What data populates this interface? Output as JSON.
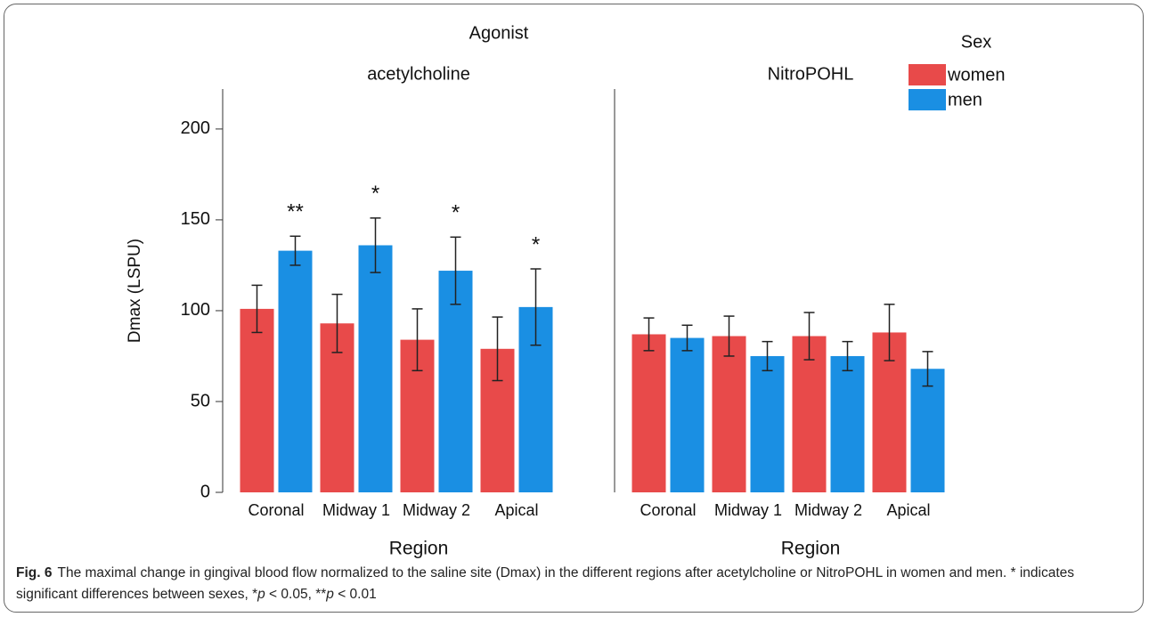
{
  "title": "Agonist",
  "legend": {
    "title": "Sex"
  },
  "caption": {
    "label": "Fig. 6",
    "parts": [
      "The maximal change in gingival blood flow normalized to the saline site (Dmax) in the different regions after acetylcholine or NitroPOHL in women and men. * indicates significant differences between sexes, *",
      "p",
      " < 0.05, **",
      "p",
      " < 0.01"
    ]
  },
  "chart_data": [
    {
      "type": "bar",
      "title": "acetylcholine",
      "x_label": "Region",
      "y_label": "Dmax (LSPU)",
      "categories": [
        "Coronal",
        "Midway 1",
        "Midway 2",
        "Apical"
      ],
      "series": [
        {
          "name": "women",
          "color": "#e84a4a",
          "values": [
            101,
            93,
            84,
            79
          ],
          "errors": [
            13,
            16,
            17,
            17.5
          ]
        },
        {
          "name": "men",
          "color": "#1a8fe3",
          "values": [
            133,
            136,
            122,
            102
          ],
          "errors": [
            8,
            15,
            18.5,
            21
          ],
          "annotations": [
            "**",
            "*",
            "*",
            "*"
          ]
        }
      ],
      "ylim": [
        0,
        222
      ],
      "yticks": [
        0,
        50,
        100,
        150,
        200
      ]
    },
    {
      "type": "bar",
      "title": "NitroPOHL",
      "x_label": "Region",
      "categories": [
        "Coronal",
        "Midway 1",
        "Midway 2",
        "Apical"
      ],
      "series": [
        {
          "name": "women",
          "color": "#e84a4a",
          "values": [
            87,
            86,
            86,
            88
          ],
          "errors": [
            9,
            11,
            13,
            15.5
          ]
        },
        {
          "name": "men",
          "color": "#1a8fe3",
          "values": [
            85,
            75,
            75,
            68
          ],
          "errors": [
            7,
            8,
            8,
            9.5
          ]
        }
      ],
      "ylim": [
        0,
        222
      ]
    }
  ]
}
